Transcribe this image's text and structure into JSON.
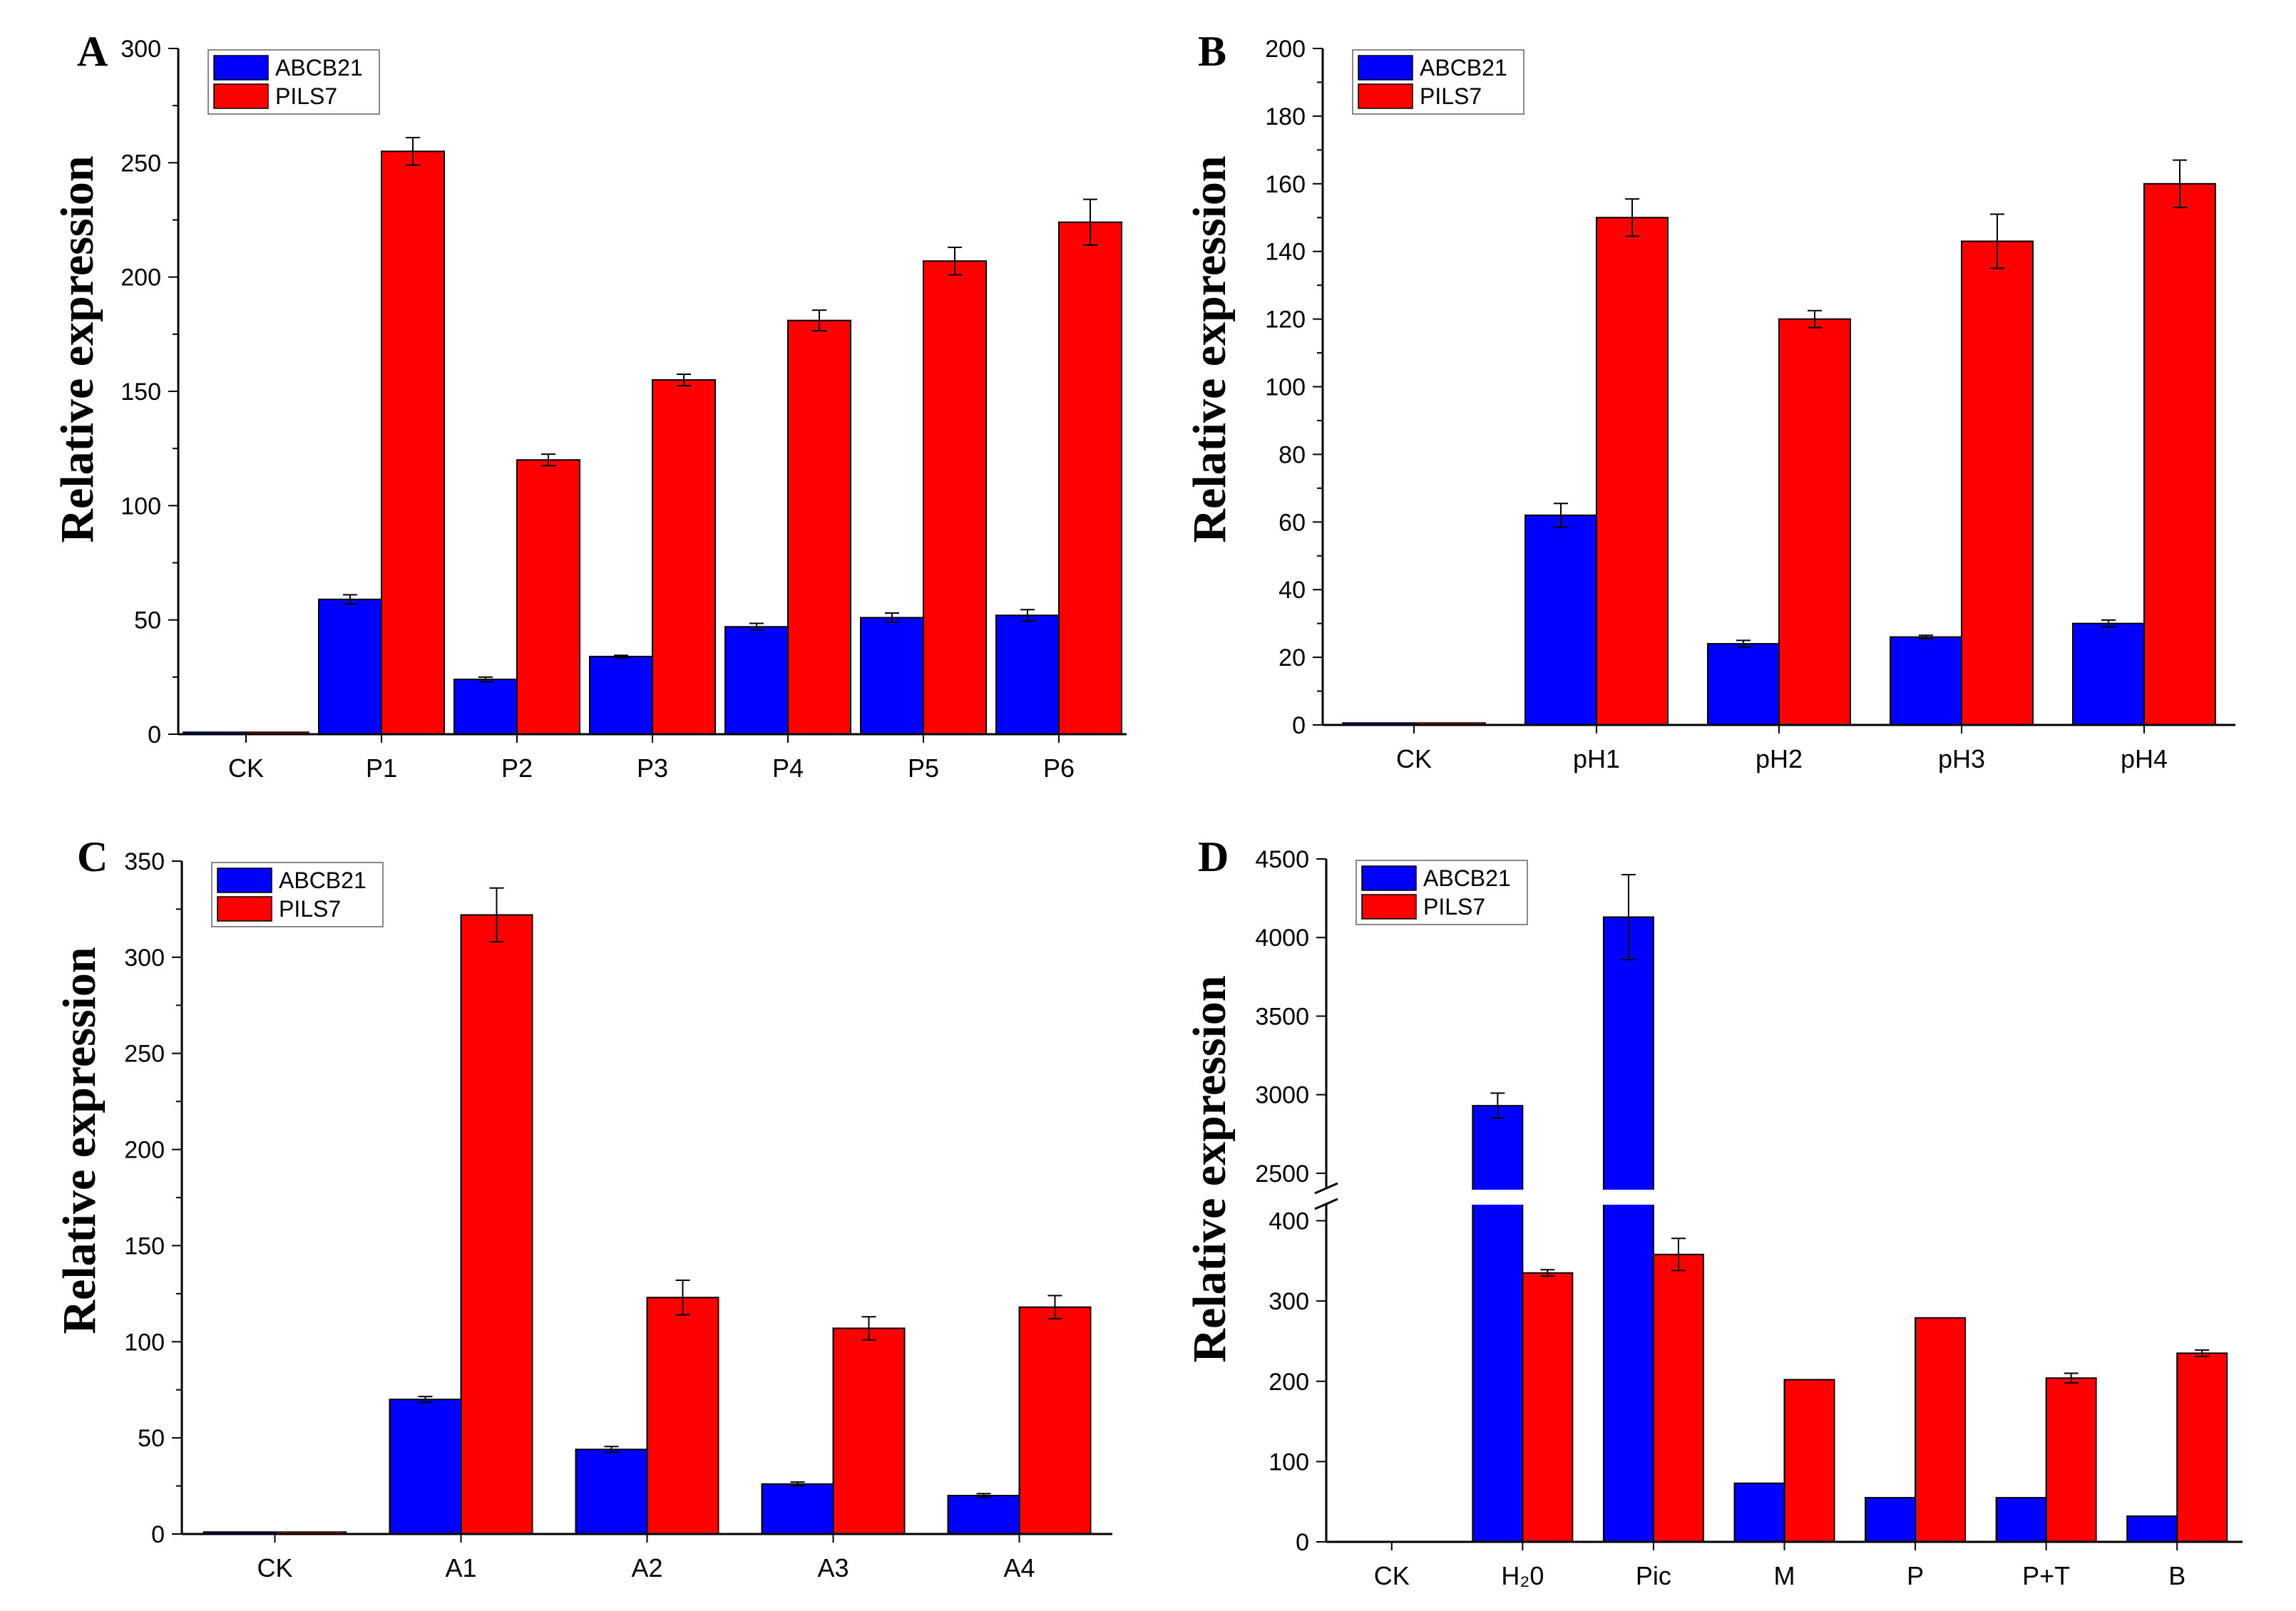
{
  "chart_data": [
    {
      "panel": "A",
      "type": "bar",
      "ylabel": "Relative expression",
      "ylim": [
        0,
        300
      ],
      "yticks": [
        0,
        50,
        100,
        150,
        200,
        250,
        300
      ],
      "categories": [
        "CK",
        "P1",
        "P2",
        "P3",
        "P4",
        "P5",
        "P6"
      ],
      "series": [
        {
          "name": "ABCB21",
          "color": "#0000ff",
          "values": [
            1,
            59,
            24,
            34,
            47,
            51,
            52
          ],
          "errors": [
            0,
            2,
            1,
            0.5,
            1.5,
            2,
            2.5
          ]
        },
        {
          "name": "PILS7",
          "color": "#ff0000",
          "values": [
            1,
            255,
            120,
            155,
            181,
            207,
            224
          ],
          "errors": [
            0,
            6,
            2.5,
            2.5,
            4.5,
            6,
            10
          ]
        }
      ],
      "legend": "top-left"
    },
    {
      "panel": "B",
      "type": "bar",
      "ylabel": "Relative expression",
      "ylim": [
        0,
        200
      ],
      "yticks": [
        0,
        20,
        40,
        60,
        80,
        100,
        120,
        140,
        160,
        180,
        200
      ],
      "categories": [
        "CK",
        "pH1",
        "pH2",
        "pH3",
        "pH4"
      ],
      "series": [
        {
          "name": "ABCB21",
          "color": "#0000ff",
          "values": [
            1,
            62,
            24,
            26,
            30
          ],
          "errors": [
            0,
            3.5,
            1,
            0.5,
            1
          ]
        },
        {
          "name": "PILS7",
          "color": "#ff0000",
          "values": [
            1,
            150,
            120,
            143,
            160
          ],
          "errors": [
            0,
            5.5,
            2.5,
            8,
            7
          ]
        }
      ],
      "legend": "top-left"
    },
    {
      "panel": "C",
      "type": "bar",
      "ylabel": "Relative expression",
      "ylim": [
        0,
        350
      ],
      "yticks": [
        0,
        50,
        100,
        150,
        200,
        250,
        300,
        350
      ],
      "categories": [
        "CK",
        "A1",
        "A2",
        "A3",
        "A4"
      ],
      "series": [
        {
          "name": "ABCB21",
          "color": "#0000ff",
          "values": [
            1,
            70,
            44,
            26,
            20
          ],
          "errors": [
            0,
            1.5,
            1.5,
            1,
            1
          ]
        },
        {
          "name": "PILS7",
          "color": "#ff0000",
          "values": [
            1,
            322,
            123,
            107,
            118
          ],
          "errors": [
            0,
            14,
            9,
            6,
            6
          ]
        }
      ],
      "legend": "top-left"
    },
    {
      "panel": "D",
      "type": "bar",
      "ylabel": "Relative expression",
      "axis_break": {
        "lower": [
          0,
          420
        ],
        "upper": [
          2400,
          4500
        ]
      },
      "yticks": [
        0,
        100,
        200,
        300,
        400,
        2500,
        3000,
        3500,
        4000,
        4500
      ],
      "categories": [
        "CK",
        "H₂0",
        "Pic",
        "M",
        "P",
        "P+T",
        "B"
      ],
      "series": [
        {
          "name": "ABCB21",
          "color": "#0000ff",
          "values": [
            0,
            2930,
            4130,
            73,
            55,
            55,
            32
          ],
          "errors": [
            0,
            80,
            270,
            0,
            0,
            0,
            0
          ]
        },
        {
          "name": "PILS7",
          "color": "#ff0000",
          "values": [
            0,
            335,
            358,
            202,
            279,
            204,
            235
          ],
          "errors": [
            0,
            4,
            20,
            0,
            0,
            6,
            4
          ]
        }
      ],
      "legend": "top-left"
    }
  ]
}
